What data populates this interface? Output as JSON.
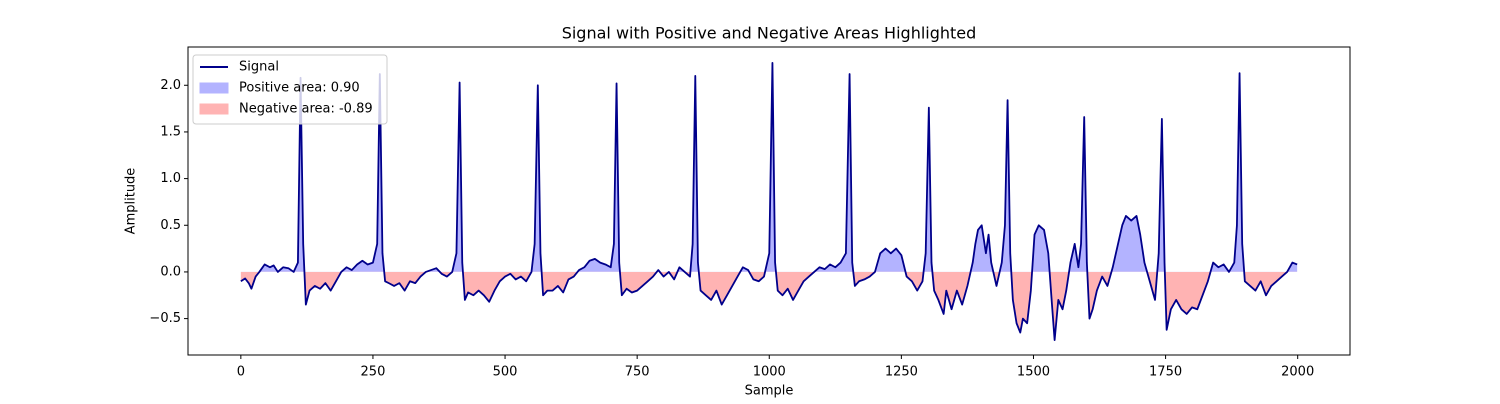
{
  "chart_data": {
    "type": "line",
    "title": "Signal with Positive and Negative Areas Highlighted",
    "xlabel": "Sample",
    "ylabel": "Amplitude",
    "x": [
      0,
      8,
      15,
      20,
      28,
      35,
      45,
      55,
      62,
      70,
      80,
      90,
      100,
      108,
      113,
      118,
      123,
      130,
      140,
      150,
      160,
      170,
      180,
      190,
      200,
      210,
      220,
      230,
      240,
      250,
      258,
      263,
      268,
      273,
      280,
      290,
      300,
      310,
      320,
      330,
      340,
      350,
      360,
      370,
      380,
      390,
      400,
      408,
      414,
      419,
      424,
      430,
      440,
      450,
      460,
      470,
      480,
      490,
      500,
      510,
      520,
      530,
      540,
      550,
      556,
      562,
      567,
      572,
      580,
      590,
      600,
      610,
      620,
      630,
      640,
      650,
      660,
      670,
      680,
      690,
      700,
      706,
      711,
      716,
      721,
      730,
      740,
      750,
      760,
      770,
      780,
      790,
      800,
      810,
      820,
      830,
      840,
      850,
      855,
      860,
      865,
      870,
      880,
      890,
      900,
      910,
      920,
      930,
      940,
      950,
      960,
      970,
      980,
      990,
      1000,
      1006,
      1011,
      1016,
      1025,
      1035,
      1045,
      1055,
      1065,
      1075,
      1085,
      1095,
      1105,
      1115,
      1125,
      1135,
      1145,
      1152,
      1157,
      1162,
      1170,
      1180,
      1190,
      1200,
      1210,
      1220,
      1230,
      1240,
      1250,
      1260,
      1270,
      1280,
      1290,
      1296,
      1302,
      1307,
      1312,
      1320,
      1330,
      1335,
      1345,
      1355,
      1365,
      1375,
      1385,
      1390,
      1395,
      1402,
      1410,
      1415,
      1420,
      1430,
      1440,
      1446,
      1451,
      1456,
      1461,
      1468,
      1475,
      1480,
      1488,
      1495,
      1502,
      1510,
      1520,
      1528,
      1535,
      1540,
      1547,
      1555,
      1562,
      1570,
      1578,
      1585,
      1590,
      1596,
      1601,
      1606,
      1612,
      1620,
      1630,
      1640,
      1650,
      1660,
      1668,
      1675,
      1685,
      1695,
      1702,
      1710,
      1720,
      1730,
      1737,
      1743,
      1748,
      1752,
      1760,
      1770,
      1780,
      1790,
      1800,
      1810,
      1820,
      1830,
      1840,
      1850,
      1860,
      1870,
      1880,
      1885,
      1890,
      1895,
      1900,
      1910,
      1920,
      1930,
      1940,
      1950,
      1960,
      1970,
      1980,
      1990,
      1999
    ],
    "series": [
      {
        "name": "Signal",
        "color": "#00008b",
        "values": [
          -0.1,
          -0.07,
          -0.12,
          -0.18,
          -0.05,
          0.0,
          0.08,
          0.05,
          0.07,
          0.0,
          0.05,
          0.04,
          0.0,
          0.1,
          2.08,
          0.3,
          -0.35,
          -0.2,
          -0.15,
          -0.18,
          -0.12,
          -0.2,
          -0.1,
          0.0,
          0.05,
          0.02,
          0.08,
          0.12,
          0.08,
          0.1,
          0.3,
          2.12,
          0.2,
          -0.1,
          -0.12,
          -0.15,
          -0.12,
          -0.2,
          -0.1,
          -0.12,
          -0.05,
          0.0,
          0.02,
          0.04,
          -0.02,
          -0.05,
          0.0,
          0.2,
          2.03,
          0.1,
          -0.3,
          -0.22,
          -0.25,
          -0.2,
          -0.25,
          -0.32,
          -0.2,
          -0.1,
          -0.05,
          -0.02,
          -0.08,
          -0.05,
          -0.1,
          0.0,
          0.3,
          2.0,
          0.2,
          -0.25,
          -0.2,
          -0.2,
          -0.15,
          -0.22,
          -0.08,
          -0.05,
          0.02,
          0.05,
          0.12,
          0.14,
          0.1,
          0.08,
          0.05,
          0.3,
          2.02,
          0.1,
          -0.25,
          -0.18,
          -0.22,
          -0.2,
          -0.15,
          -0.1,
          -0.05,
          0.02,
          -0.05,
          0.0,
          -0.08,
          0.05,
          0.0,
          -0.05,
          0.3,
          2.1,
          0.1,
          -0.2,
          -0.25,
          -0.3,
          -0.2,
          -0.35,
          -0.25,
          -0.15,
          -0.05,
          0.05,
          0.02,
          -0.08,
          -0.1,
          -0.05,
          0.2,
          2.24,
          0.1,
          -0.2,
          -0.25,
          -0.18,
          -0.3,
          -0.2,
          -0.1,
          -0.05,
          0.0,
          0.05,
          0.03,
          0.08,
          0.05,
          0.1,
          0.2,
          2.12,
          0.1,
          -0.15,
          -0.1,
          -0.08,
          -0.05,
          0.0,
          0.2,
          0.25,
          0.2,
          0.25,
          0.18,
          -0.05,
          -0.1,
          -0.2,
          -0.1,
          0.2,
          1.76,
          0.1,
          -0.2,
          -0.3,
          -0.45,
          -0.2,
          -0.4,
          -0.2,
          -0.35,
          -0.15,
          0.1,
          0.3,
          0.45,
          0.5,
          0.2,
          0.4,
          0.1,
          -0.15,
          0.1,
          0.5,
          1.84,
          0.2,
          -0.3,
          -0.55,
          -0.65,
          -0.5,
          -0.55,
          -0.2,
          0.4,
          0.5,
          0.45,
          0.2,
          -0.35,
          -0.73,
          -0.3,
          -0.4,
          -0.2,
          0.1,
          0.3,
          0.05,
          0.3,
          1.66,
          0.1,
          -0.5,
          -0.4,
          -0.2,
          -0.05,
          -0.15,
          0.05,
          0.3,
          0.5,
          0.6,
          0.55,
          0.6,
          0.4,
          0.1,
          -0.1,
          -0.3,
          0.2,
          1.64,
          0.1,
          -0.62,
          -0.4,
          -0.3,
          -0.4,
          -0.45,
          -0.38,
          -0.4,
          -0.25,
          -0.1,
          0.1,
          0.05,
          0.08,
          0.0,
          0.1,
          0.5,
          2.13,
          0.3,
          -0.1,
          -0.15,
          -0.2,
          -0.1,
          -0.25,
          -0.15,
          -0.1,
          -0.05,
          0.0,
          0.1,
          0.08
        ]
      }
    ],
    "areas": [
      {
        "name": "Positive area: 0.90",
        "color": "#b3b3ff"
      },
      {
        "name": "Negative area: -0.89",
        "color": "#ffb3b3"
      }
    ],
    "xlim": [
      -100,
      2099
    ],
    "ylim": [
      -0.89,
      2.41
    ],
    "xticks": [
      0,
      250,
      500,
      750,
      1000,
      1250,
      1500,
      1750,
      2000
    ],
    "yticks": [
      {
        "value": -0.5,
        "label": "−0.5"
      },
      {
        "value": 0,
        "label": "0.0"
      },
      0.5,
      {
        "value": 1,
        "label": "1.0"
      },
      1.5,
      {
        "value": 2,
        "label": "2.0"
      }
    ],
    "legend": "upper left"
  }
}
